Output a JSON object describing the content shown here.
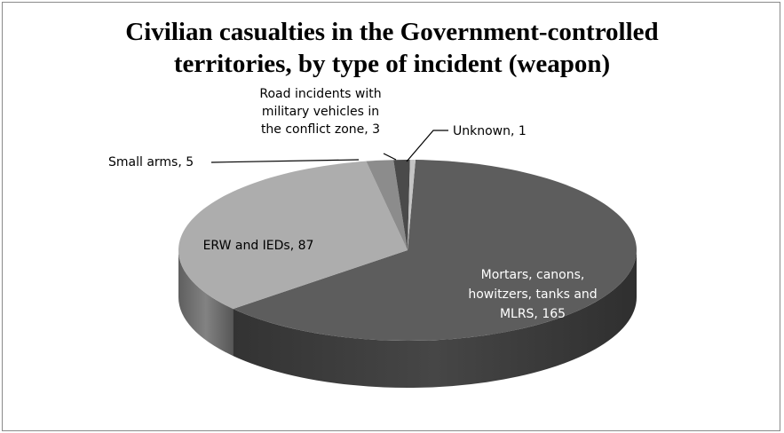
{
  "chart_data": {
    "type": "pie",
    "title_lines": [
      "Civilian casualties in the Government-controlled",
      "territories, by type of incident (weapon)"
    ],
    "slices": [
      {
        "label": "Mortars, canons, howitzers, tanks and MLRS",
        "value": 165,
        "label_lines": [
          "Mortars, canons,",
          "howitzers, tanks and",
          "MLRS, 165"
        ],
        "color": "#5d5d5d"
      },
      {
        "label": "ERW and IEDs",
        "value": 87,
        "label_lines": [
          "ERW and IEDs, 87"
        ],
        "color": "#adadad"
      },
      {
        "label": "Small arms",
        "value": 5,
        "label_lines": [
          "Small arms, 5"
        ],
        "color": "#8c8c8c"
      },
      {
        "label": "Road incidents with military vehicles in the conflict zone",
        "value": 3,
        "label_lines": [
          "Road incidents with",
          "military vehicles in",
          "the conflict zone, 3"
        ],
        "color": "#4a4a4a"
      },
      {
        "label": "Unknown",
        "value": 1,
        "label_lines": [
          "Unknown, 1"
        ],
        "color": "#c4c4c4"
      }
    ],
    "legend": "none",
    "style": "3d"
  }
}
